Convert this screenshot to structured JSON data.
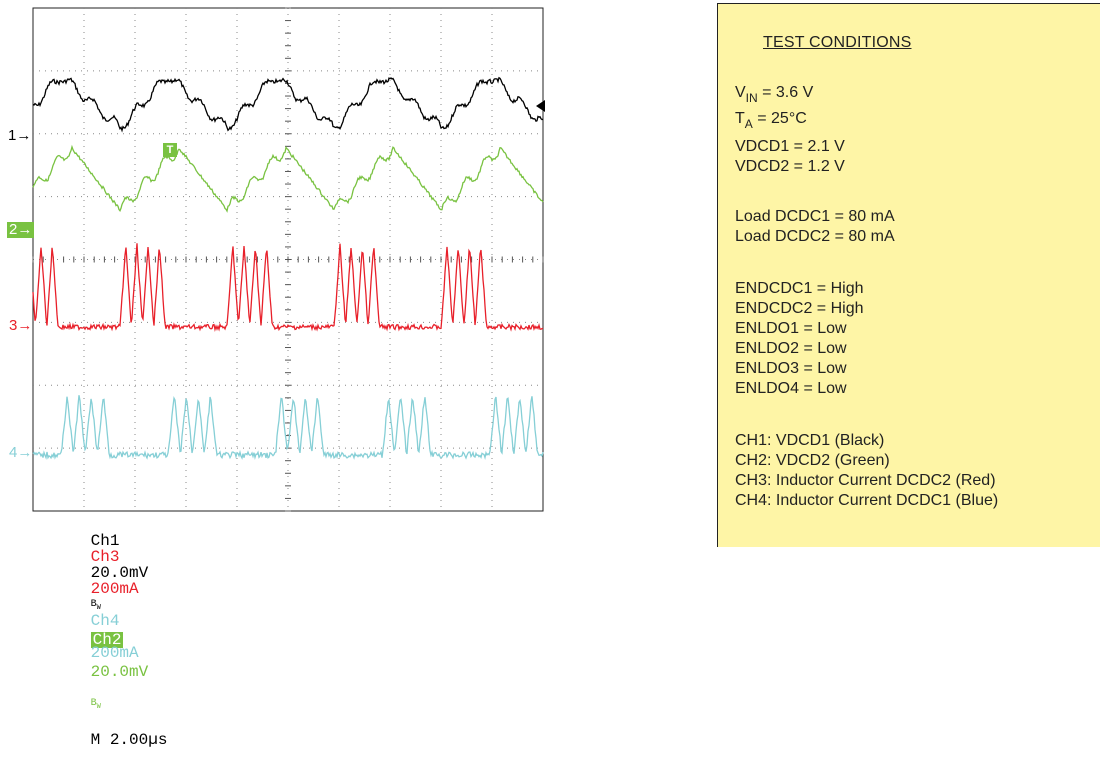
{
  "scope": {
    "channel_markers": [
      {
        "label": "1",
        "color": "#000000"
      },
      {
        "label": "2",
        "color": "#79c241"
      },
      {
        "label": "3",
        "color": "#e8202a"
      },
      {
        "label": "4",
        "color": "#86cfd6"
      }
    ],
    "trigger_marker": "T",
    "status": {
      "ch1_label": "Ch1",
      "ch1_scale": "20.0mV",
      "bw1": "B",
      "ch2_label": "Ch2",
      "ch2_scale": "20.0mV",
      "bw2": "B",
      "timebase": "M 2.00µs",
      "ch3_label": "Ch3",
      "ch3_scale": "200mA",
      "ch4_label": "Ch4",
      "ch4_scale": "200mA"
    }
  },
  "chart_data": {
    "type": "line",
    "x_unit": "µs",
    "x_range": [
      0,
      20
    ],
    "series": [
      {
        "name": "Ch1",
        "color": "#000000",
        "scale_per_div": "20.0mV",
        "period_us": 4.2,
        "shape": "triangle ripple with sub-ripple",
        "peak_to_peak_div": 1.1
      },
      {
        "name": "Ch2",
        "color": "#79c241",
        "scale_per_div": "20.0mV",
        "period_us": 4.2,
        "shape": "staircase rise then linear fall",
        "peak_to_peak_div": 1.6
      },
      {
        "name": "Ch3",
        "color": "#e8202a",
        "scale_per_div": "200mA",
        "period_us": 4.2,
        "shape": "triangular current bursts then idle",
        "peak_to_peak_div": 1.6
      },
      {
        "name": "Ch4",
        "color": "#86cfd6",
        "scale_per_div": "200mA",
        "period_us": 4.2,
        "shape": "triangular current bursts then idle",
        "peak_to_peak_div": 1.4
      }
    ]
  },
  "conditions": {
    "title": "TEST CONDITIONS",
    "vin_v": "V",
    "vin_sub": "IN",
    "vin_val": " = 3.6 V",
    "ta_t": "T",
    "ta_sub": "A",
    "ta_val": " = 25°C",
    "vdcd1": "VDCD1 = 2.1 V",
    "vdcd2": "VDCD2 = 1.2 V",
    "load1": "Load DCDC1 = 80 mA",
    "load2": "Load DCDC2 = 80 mA",
    "en1": "ENDCDC1 = High",
    "en2": "ENDCDC2 = High",
    "ldo1": "ENLDO1 = Low",
    "ldo2": "ENLDO2 = Low",
    "ldo3": "ENLDO3 = Low",
    "ldo4": "ENLDO4 = Low",
    "ch1": "CH1: VDCD1 (Black)",
    "ch2": "CH2: VDCD2 (Green)",
    "ch3": "CH3: Inductor Current DCDC2 (Red)",
    "ch4": "CH4: Inductor Current DCDC1 (Blue)"
  }
}
